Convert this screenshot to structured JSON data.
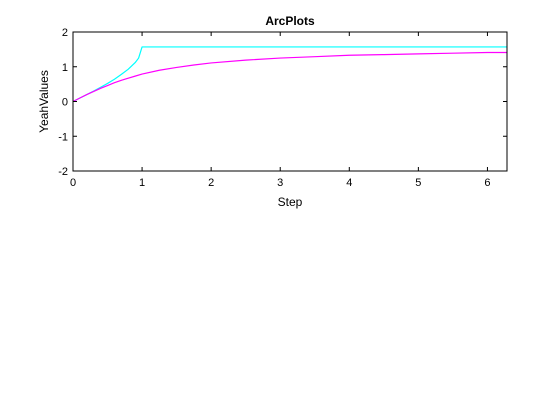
{
  "chart_data": {
    "type": "line",
    "title": "ArcPlots",
    "xlabel": "Step",
    "ylabel": "YeahValues",
    "xlim": [
      0,
      6.2832
    ],
    "ylim": [
      -2,
      2
    ],
    "xticks": [
      "0",
      "1",
      "2",
      "3",
      "4",
      "5",
      "6"
    ],
    "yticks": [
      "-2",
      "-1",
      "0",
      "1",
      "2"
    ],
    "grid": false,
    "legend": "none",
    "series": [
      {
        "color": "#00ffff",
        "x": [
          0,
          0.1,
          0.2,
          0.3,
          0.4,
          0.5,
          0.6,
          0.7,
          0.8,
          0.9,
          0.95,
          1.0,
          1.5,
          2,
          3,
          4,
          5,
          6,
          6.2832
        ],
        "y": [
          0,
          0.1,
          0.2,
          0.3,
          0.41,
          0.52,
          0.64,
          0.78,
          0.93,
          1.12,
          1.25,
          1.57,
          1.57,
          1.57,
          1.57,
          1.57,
          1.57,
          1.57,
          1.57
        ]
      },
      {
        "color": "#ff00ff",
        "x": [
          0,
          0.1,
          0.2,
          0.3,
          0.4,
          0.5,
          0.6,
          0.7,
          0.8,
          0.9,
          1.0,
          1.25,
          1.5,
          1.75,
          2,
          2.5,
          3,
          3.5,
          4,
          4.5,
          5,
          5.5,
          6,
          6.2832
        ],
        "y": [
          0,
          0.1,
          0.2,
          0.29,
          0.38,
          0.46,
          0.54,
          0.61,
          0.67,
          0.73,
          0.79,
          0.9,
          0.98,
          1.05,
          1.11,
          1.19,
          1.25,
          1.29,
          1.33,
          1.35,
          1.37,
          1.39,
          1.41,
          1.41
        ]
      }
    ]
  }
}
